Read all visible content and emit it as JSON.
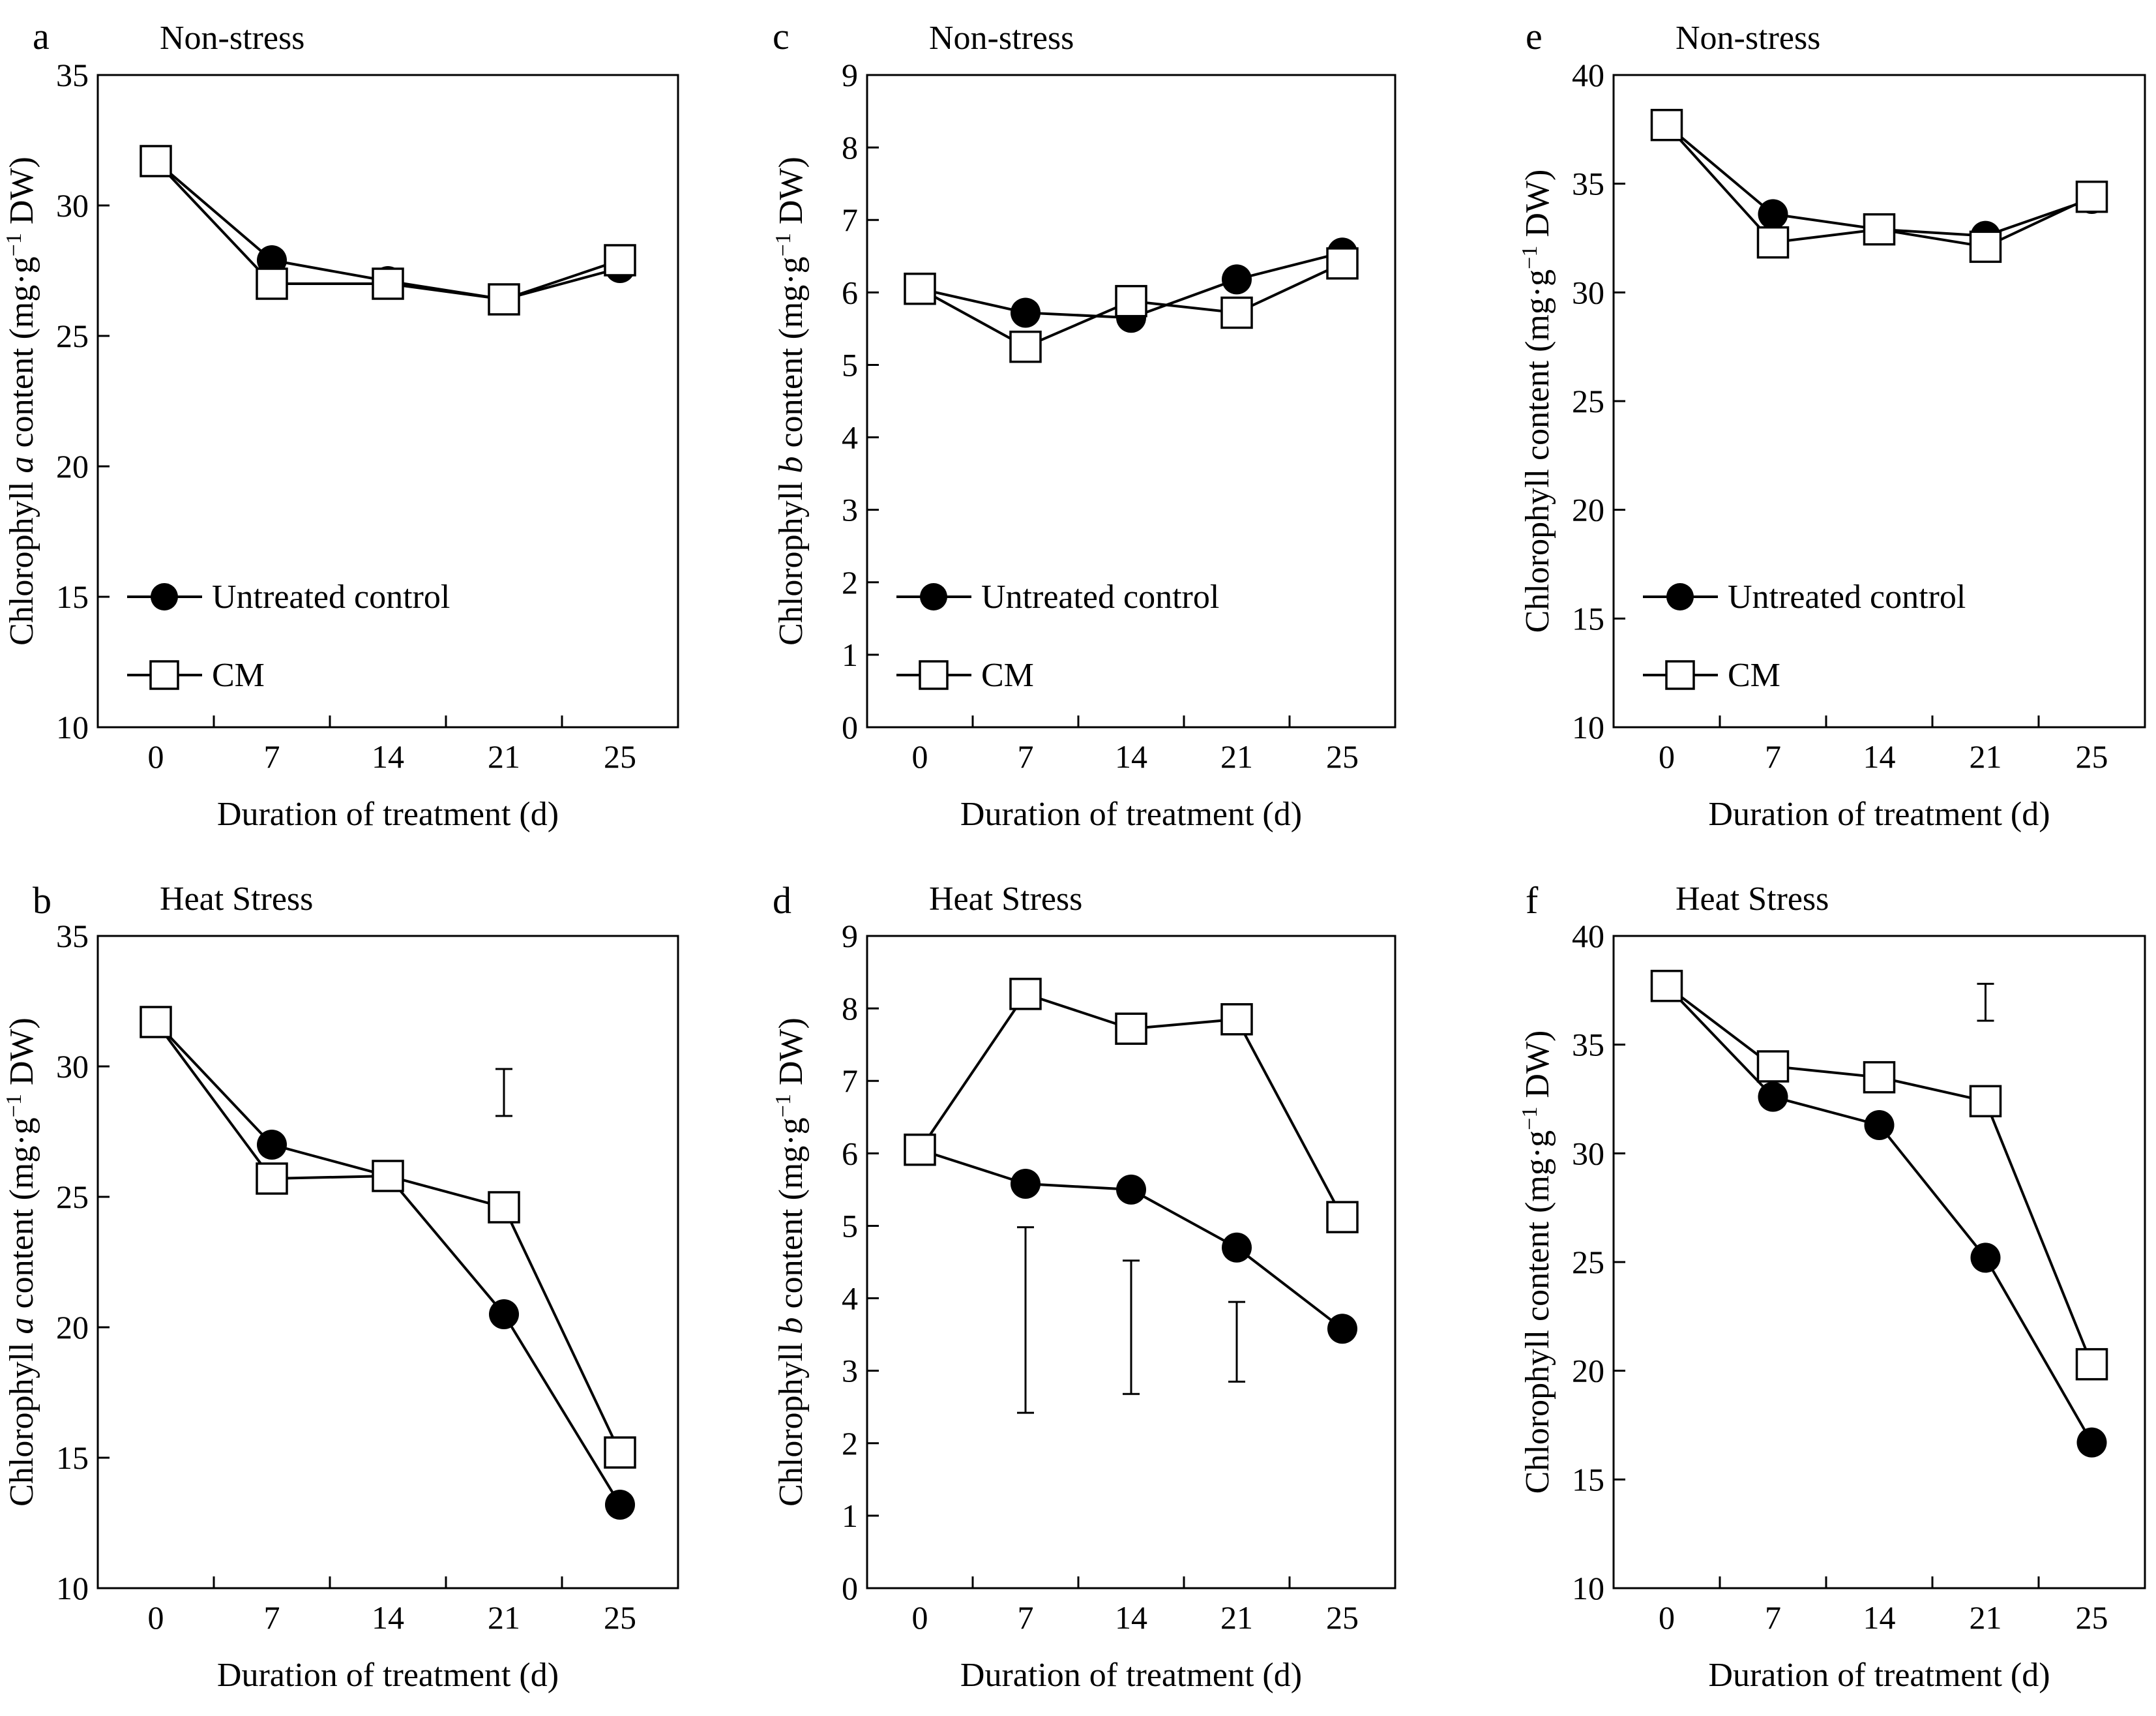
{
  "chart_data": [
    {
      "type": "line",
      "panel": "a",
      "title": "Non-stress",
      "xlabel": "Duration of treatment (d)",
      "ylabel_parts": [
        "Chlorophyll ",
        "a",
        " content (mg·g",
        "−1",
        " DW)"
      ],
      "categories": [
        "0",
        "7",
        "14",
        "21",
        "25"
      ],
      "ylim": [
        10,
        35
      ],
      "yticks": [
        10,
        15,
        20,
        25,
        30,
        35
      ],
      "series": [
        {
          "name": "Untreated control",
          "marker": "filled-circle",
          "values": [
            31.7,
            27.9,
            27.1,
            26.4,
            27.6
          ]
        },
        {
          "name": "CM",
          "marker": "open-square",
          "values": [
            31.7,
            27.0,
            27.0,
            26.4,
            27.9
          ]
        }
      ],
      "error_bars": [],
      "legend_position": "lower-left"
    },
    {
      "type": "line",
      "panel": "b",
      "title": "Heat Stress",
      "xlabel": "Duration of treatment (d)",
      "ylabel_parts": [
        "Chlorophyll ",
        "a",
        " content (mg·g",
        "−1",
        " DW)"
      ],
      "categories": [
        "0",
        "7",
        "14",
        "21",
        "25"
      ],
      "ylim": [
        10,
        35
      ],
      "yticks": [
        10,
        15,
        20,
        25,
        30,
        35
      ],
      "series": [
        {
          "name": "Untreated control",
          "marker": "filled-circle",
          "values": [
            31.7,
            27.0,
            25.8,
            20.5,
            13.2
          ]
        },
        {
          "name": "CM",
          "marker": "open-square",
          "values": [
            31.7,
            25.7,
            25.8,
            24.6,
            15.2
          ]
        }
      ],
      "error_bars": [
        {
          "category": "21",
          "low": 28.1,
          "high": 29.9
        }
      ],
      "legend_position": "none"
    },
    {
      "type": "line",
      "panel": "c",
      "title": "Non-stress",
      "xlabel": "Duration of treatment (d)",
      "ylabel_parts": [
        "Chlorophyll ",
        "b",
        " content (mg·g",
        "−1",
        " DW)"
      ],
      "categories": [
        "0",
        "7",
        "14",
        "21",
        "25"
      ],
      "ylim": [
        0,
        9
      ],
      "yticks": [
        0,
        1,
        2,
        3,
        4,
        5,
        6,
        7,
        8,
        9
      ],
      "series": [
        {
          "name": "Untreated control",
          "marker": "filled-circle",
          "values": [
            6.05,
            5.72,
            5.65,
            6.18,
            6.55
          ]
        },
        {
          "name": "CM",
          "marker": "open-square",
          "values": [
            6.05,
            5.25,
            5.88,
            5.72,
            6.4
          ]
        }
      ],
      "error_bars": [],
      "legend_position": "lower-left"
    },
    {
      "type": "line",
      "panel": "d",
      "title": "Heat Stress",
      "xlabel": "Duration of treatment (d)",
      "ylabel_parts": [
        "Chlorophyll ",
        "b",
        " content (mg·g",
        "−1",
        " DW)"
      ],
      "categories": [
        "0",
        "7",
        "14",
        "21",
        "25"
      ],
      "ylim": [
        0,
        9
      ],
      "yticks": [
        0,
        1,
        2,
        3,
        4,
        5,
        6,
        7,
        8,
        9
      ],
      "series": [
        {
          "name": "Untreated control",
          "marker": "filled-circle",
          "values": [
            6.05,
            5.58,
            5.5,
            4.7,
            3.58
          ]
        },
        {
          "name": "CM",
          "marker": "open-square",
          "values": [
            6.05,
            8.2,
            7.72,
            7.85,
            5.12
          ]
        }
      ],
      "error_bars": [
        {
          "category": "7",
          "low": 2.42,
          "high": 4.98
        },
        {
          "category": "14",
          "low": 2.68,
          "high": 4.52
        },
        {
          "category": "21",
          "low": 2.85,
          "high": 3.95
        }
      ],
      "legend_position": "none"
    },
    {
      "type": "line",
      "panel": "e",
      "title": "Non-stress",
      "xlabel": "Duration of treatment (d)",
      "ylabel_parts": [
        "Chlorophyll content (mg·g",
        "−1",
        " DW)"
      ],
      "categories": [
        "0",
        "7",
        "14",
        "21",
        "25"
      ],
      "ylim": [
        10,
        40
      ],
      "yticks": [
        10,
        15,
        20,
        25,
        30,
        35,
        40
      ],
      "series": [
        {
          "name": "Untreated control",
          "marker": "filled-circle",
          "values": [
            37.7,
            33.6,
            32.9,
            32.6,
            34.3
          ]
        },
        {
          "name": "CM",
          "marker": "open-square",
          "values": [
            37.7,
            32.3,
            32.9,
            32.1,
            34.4
          ]
        }
      ],
      "error_bars": [],
      "legend_position": "lower-left"
    },
    {
      "type": "line",
      "panel": "f",
      "title": "Heat Stress",
      "xlabel": "Duration of treatment (d)",
      "ylabel_parts": [
        "Chlorophyll content (mg·g",
        "−1",
        " DW)"
      ],
      "categories": [
        "0",
        "7",
        "14",
        "21",
        "25"
      ],
      "ylim": [
        10,
        40
      ],
      "yticks": [
        10,
        15,
        20,
        25,
        30,
        35,
        40
      ],
      "series": [
        {
          "name": "Untreated control",
          "marker": "filled-circle",
          "values": [
            37.7,
            32.6,
            31.3,
            25.2,
            16.7
          ]
        },
        {
          "name": "CM",
          "marker": "open-square",
          "values": [
            37.7,
            34.0,
            33.5,
            32.4,
            20.3
          ]
        }
      ],
      "error_bars": [
        {
          "category": "21",
          "low": 36.1,
          "high": 37.8
        }
      ],
      "legend_position": "none"
    }
  ]
}
